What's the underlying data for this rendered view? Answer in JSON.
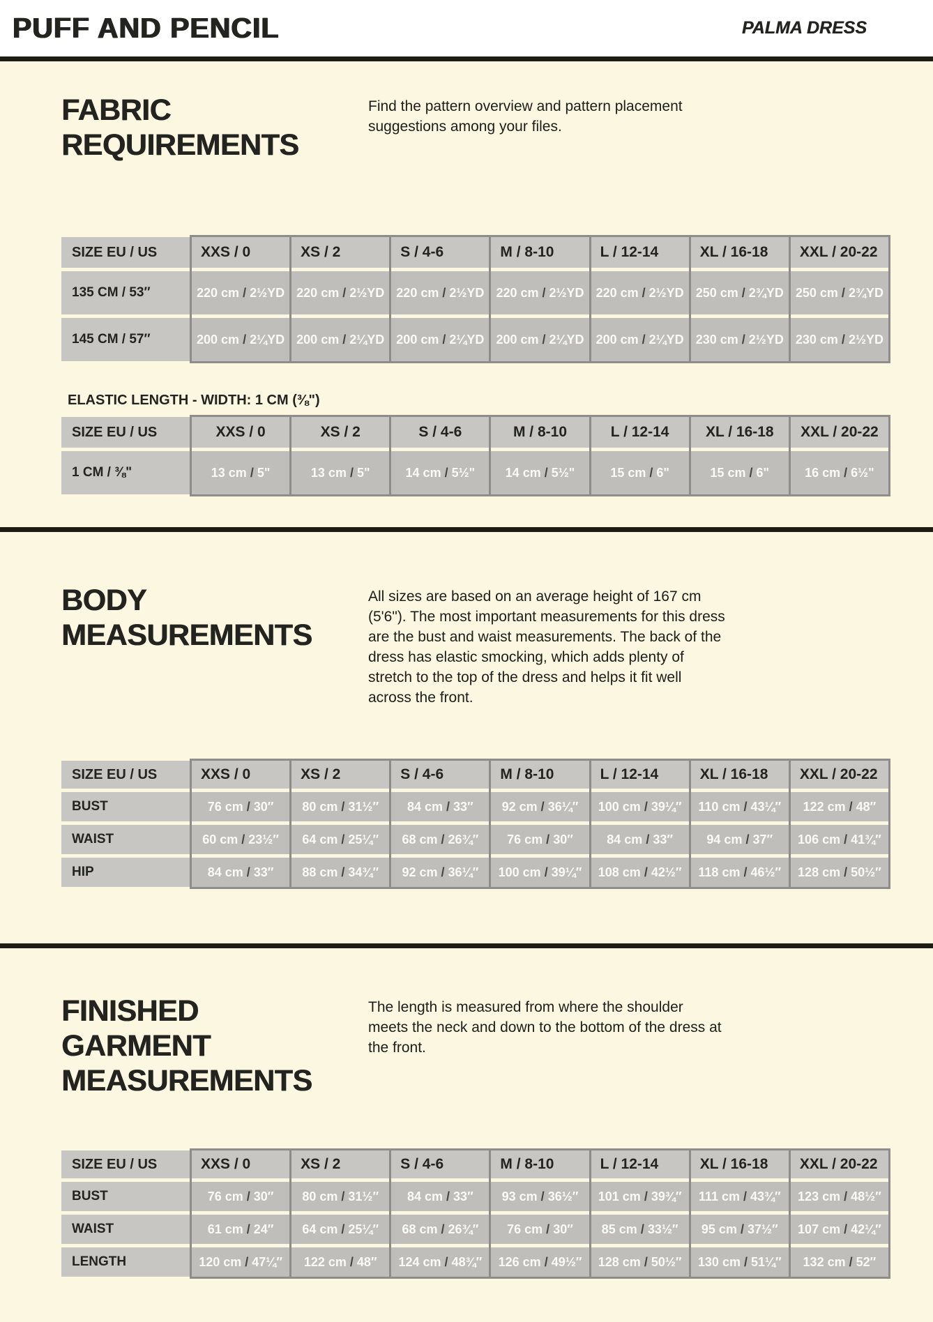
{
  "header": {
    "brand": "PUFF AND PENCIL",
    "doc_title": "PALMA DRESS"
  },
  "size_header": "SIZE EU / US",
  "sizes": [
    "XXS / 0",
    "XS / 2",
    "S / 4-6",
    "M / 8-10",
    "L / 12-14",
    "XL / 16-18",
    "XXL / 20-22"
  ],
  "fabric": {
    "title_lines": [
      "FABRIC",
      "REQUIREMENTS"
    ],
    "intro": "Find the pattern overview and pattern placement suggestions among your files.",
    "table": {
      "rows": [
        {
          "label": "135 CM / 53″",
          "cells": [
            [
              "220 cm",
              "2½YD"
            ],
            [
              "220 cm",
              "2½YD"
            ],
            [
              "220 cm",
              "2½YD"
            ],
            [
              "220 cm",
              "2½YD"
            ],
            [
              "220 cm",
              "2½YD"
            ],
            [
              "250 cm",
              "2¾YD"
            ],
            [
              "250 cm",
              "2¾YD"
            ]
          ]
        },
        {
          "label": "145 CM / 57″",
          "cells": [
            [
              "200 cm",
              "2¼YD"
            ],
            [
              "200 cm",
              "2¼YD"
            ],
            [
              "200 cm",
              "2¼YD"
            ],
            [
              "200 cm",
              "2¼YD"
            ],
            [
              "200 cm",
              "2¼YD"
            ],
            [
              "230 cm",
              "2½YD"
            ],
            [
              "230 cm",
              "2½YD"
            ]
          ]
        }
      ]
    },
    "elastic_label": "ELASTIC LENGTH - WIDTH: 1 CM (⅜\")",
    "elastic_table": {
      "rows": [
        {
          "label": "1 CM / ⅜\"",
          "cells": [
            [
              "13 cm",
              "5\""
            ],
            [
              "13 cm",
              "5\""
            ],
            [
              "14 cm",
              "5½\""
            ],
            [
              "14 cm",
              "5½\""
            ],
            [
              "15 cm",
              "6\""
            ],
            [
              "15 cm",
              "6\""
            ],
            [
              "16 cm",
              "6½\""
            ]
          ]
        }
      ]
    }
  },
  "body_measurements": {
    "title_lines": [
      "BODY",
      "MEASUREMENTS"
    ],
    "intro": "All sizes are based on an average height of 167 cm (5'6\"). The most important measurements for this dress are the bust and waist measurements. The back of the dress has elastic smocking, which adds plenty of stretch to the top of the dress and helps it fit well across the front.",
    "table": {
      "rows": [
        {
          "label": "BUST",
          "cells": [
            [
              "76 cm",
              "30″"
            ],
            [
              "80 cm",
              "31½″"
            ],
            [
              "84 cm",
              "33″"
            ],
            [
              "92 cm",
              "36¼″"
            ],
            [
              "100 cm",
              "39¼″"
            ],
            [
              "110 cm",
              "43¼″"
            ],
            [
              "122 cm",
              "48″"
            ]
          ]
        },
        {
          "label": "WAIST",
          "cells": [
            [
              "60 cm",
              "23½″"
            ],
            [
              "64 cm",
              "25¼″"
            ],
            [
              "68 cm",
              "26¾″"
            ],
            [
              "76 cm",
              "30″"
            ],
            [
              "84 cm",
              "33″"
            ],
            [
              "94 cm",
              "37″"
            ],
            [
              "106 cm",
              "41¾″"
            ]
          ]
        },
        {
          "label": "HIP",
          "cells": [
            [
              "84 cm",
              "33″"
            ],
            [
              "88 cm",
              "34¾″"
            ],
            [
              "92 cm",
              "36¼″"
            ],
            [
              "100 cm",
              "39¼″"
            ],
            [
              "108 cm",
              "42½″"
            ],
            [
              "118 cm",
              "46½″"
            ],
            [
              "128 cm",
              "50½″"
            ]
          ]
        }
      ]
    }
  },
  "finished_garment": {
    "title_lines": [
      "FINISHED",
      "GARMENT",
      "MEASUREMENTS"
    ],
    "intro": "The length is measured from where the shoulder meets the neck and down to the bottom of the dress at the front.",
    "table": {
      "rows": [
        {
          "label": "BUST",
          "cells": [
            [
              "76 cm",
              "30″"
            ],
            [
              "80 cm",
              "31½″"
            ],
            [
              "84 cm",
              "33″"
            ],
            [
              "93 cm",
              "36½″"
            ],
            [
              "101 cm",
              "39¾″"
            ],
            [
              "111 cm",
              "43¾″"
            ],
            [
              "123 cm",
              "48½″"
            ]
          ]
        },
        {
          "label": "WAIST",
          "cells": [
            [
              "61 cm",
              "24″"
            ],
            [
              "64 cm",
              "25¼″"
            ],
            [
              "68 cm",
              "26¾″"
            ],
            [
              "76 cm",
              "30″"
            ],
            [
              "85 cm",
              "33½″"
            ],
            [
              "95 cm",
              "37½″"
            ],
            [
              "107 cm",
              "42¼″"
            ]
          ]
        },
        {
          "label": "LENGTH",
          "cells": [
            [
              "120 cm",
              "47¼″"
            ],
            [
              "122 cm",
              "48″"
            ],
            [
              "124 cm",
              "48¾″"
            ],
            [
              "126 cm",
              "49½″"
            ],
            [
              "128 cm",
              "50½″"
            ],
            [
              "130 cm",
              "51¼″"
            ],
            [
              "132 cm",
              "52″"
            ]
          ]
        }
      ]
    }
  }
}
